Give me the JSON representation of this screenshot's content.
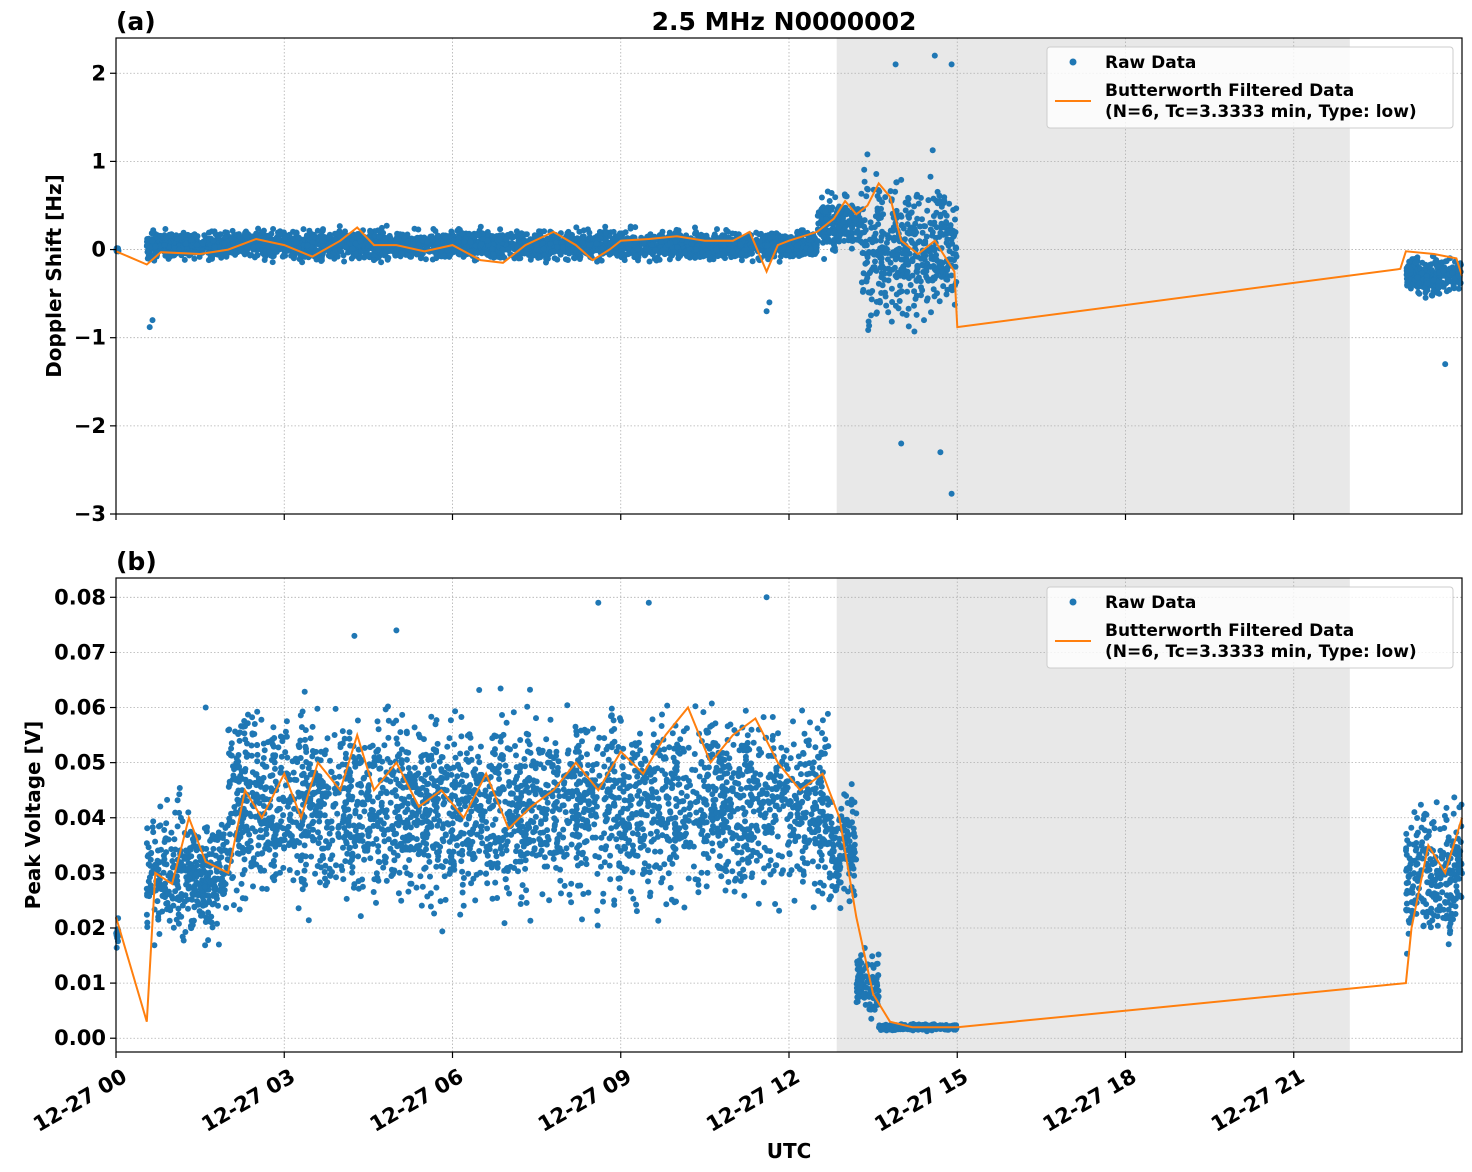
{
  "title": "2.5 MHz N0000002",
  "xlabel": "UTC",
  "x_tick_labels": [
    "12-27 00",
    "12-27 03",
    "12-27 06",
    "12-27 09",
    "12-27 12",
    "12-27 15",
    "12-27 18",
    "12-27 21"
  ],
  "legend": {
    "raw": "Raw Data",
    "filtered_line1": "Butterworth Filtered Data",
    "filtered_line2": "(N=6, Tc=3.3333 min, Type: low)"
  },
  "colors": {
    "raw": "#1f77b4",
    "filtered": "#ff7f0e",
    "shade": "#e8e8e8",
    "grid": "#b0b0b0"
  },
  "chart_data": [
    {
      "panel": "(a)",
      "type": "scatter",
      "ylabel": "Doppler Shift [Hz]",
      "xlim_hours_utc": [
        0,
        24
      ],
      "ylim": [
        -3,
        2.4
      ],
      "y_ticks": [
        -3,
        -2,
        -1,
        0,
        1,
        2
      ],
      "y_tick_labels": [
        "−3",
        "−2",
        "−1",
        "0",
        "1",
        "2"
      ],
      "shaded_region_hours": [
        12.85,
        22
      ],
      "grid": true,
      "legend_position": "top-right",
      "series": [
        {
          "name": "Raw Data",
          "style": "scatter",
          "segments": [
            {
              "hours": [
                0.0,
                0.05
              ],
              "center": 0.0,
              "spread": 0.05
            },
            {
              "hours": [
                0.55,
                12.5
              ],
              "center": 0.05,
              "spread": 0.3
            },
            {
              "hours": [
                12.5,
                13.3
              ],
              "center": 0.3,
              "spread": 0.6
            },
            {
              "hours": [
                13.3,
                15.0
              ],
              "center": 0.0,
              "spread": 1.5
            },
            {
              "hours": [
                23.0,
                24.0
              ],
              "center": -0.3,
              "spread": 0.4
            }
          ],
          "x_hours": [
            0.6,
            0.65,
            11.6,
            11.65,
            13.9,
            14.6,
            14.7,
            14.9,
            14.9,
            14.0,
            23.7
          ],
          "y": [
            -0.88,
            -0.8,
            -0.7,
            -0.6,
            2.1,
            2.2,
            -2.3,
            -2.77,
            2.1,
            -2.2,
            -1.3
          ]
        },
        {
          "name": "Butterworth Filtered Data",
          "style": "line",
          "x_hours": [
            0.0,
            0.55,
            0.8,
            1.5,
            2.0,
            2.5,
            3.0,
            3.5,
            4.0,
            4.3,
            4.6,
            5.0,
            5.5,
            6.0,
            6.5,
            6.9,
            7.3,
            7.8,
            8.2,
            8.5,
            8.8,
            9.0,
            9.5,
            10.0,
            10.5,
            11.0,
            11.3,
            11.6,
            11.8,
            12.0,
            12.5,
            12.8,
            13.0,
            13.2,
            13.4,
            13.6,
            13.8,
            14.0,
            14.3,
            14.6,
            14.95,
            15.0,
            22.9,
            23.0,
            23.5,
            23.9,
            24.0
          ],
          "y": [
            -0.02,
            -0.17,
            -0.03,
            -0.05,
            0.0,
            0.12,
            0.05,
            -0.08,
            0.1,
            0.25,
            0.05,
            0.05,
            -0.02,
            0.05,
            -0.12,
            -0.15,
            0.05,
            0.2,
            0.05,
            -0.12,
            0.0,
            0.1,
            0.12,
            0.15,
            0.1,
            0.1,
            0.2,
            -0.25,
            0.05,
            0.1,
            0.2,
            0.35,
            0.55,
            0.4,
            0.5,
            0.75,
            0.6,
            0.1,
            -0.05,
            0.1,
            -0.25,
            -0.88,
            -0.22,
            -0.02,
            -0.05,
            -0.1,
            -0.3
          ]
        }
      ]
    },
    {
      "panel": "(b)",
      "type": "scatter",
      "ylabel": "Peak Voltage [V]",
      "xlim_hours_utc": [
        0,
        24
      ],
      "ylim": [
        -0.0025,
        0.0835
      ],
      "y_ticks": [
        0.0,
        0.01,
        0.02,
        0.03,
        0.04,
        0.05,
        0.06,
        0.07,
        0.08
      ],
      "y_tick_labels": [
        "0.00",
        "0.01",
        "0.02",
        "0.03",
        "0.04",
        "0.05",
        "0.06",
        "0.07",
        "0.08"
      ],
      "shaded_region_hours": [
        12.85,
        22
      ],
      "grid": true,
      "legend_position": "top-right",
      "series": [
        {
          "name": "Raw Data",
          "style": "scatter",
          "segments": [
            {
              "hours": [
                0.0,
                0.05
              ],
              "center": 0.019,
              "spread": 0.006
            },
            {
              "hours": [
                0.55,
                2.0
              ],
              "center": 0.03,
              "spread": 0.022
            },
            {
              "hours": [
                2.0,
                12.7
              ],
              "center": 0.042,
              "spread": 0.032
            },
            {
              "hours": [
                12.7,
                13.2
              ],
              "center": 0.035,
              "spread": 0.02
            },
            {
              "hours": [
                13.2,
                13.6
              ],
              "center": 0.01,
              "spread": 0.012
            },
            {
              "hours": [
                13.6,
                15.0
              ],
              "center": 0.002,
              "spread": 0.001
            },
            {
              "hours": [
                23.0,
                24.0
              ],
              "center": 0.03,
              "spread": 0.022
            }
          ],
          "x_hours": [
            9.5,
            11.6,
            4.25,
            5.0,
            8.6,
            1.6
          ],
          "y": [
            0.079,
            0.08,
            0.073,
            0.074,
            0.079,
            0.06
          ]
        },
        {
          "name": "Butterworth Filtered Data",
          "style": "line",
          "x_hours": [
            0.0,
            0.55,
            0.7,
            1.0,
            1.3,
            1.6,
            2.0,
            2.3,
            2.6,
            3.0,
            3.3,
            3.6,
            4.0,
            4.3,
            4.6,
            5.0,
            5.4,
            5.8,
            6.2,
            6.6,
            7.0,
            7.4,
            7.8,
            8.2,
            8.6,
            9.0,
            9.4,
            9.8,
            10.2,
            10.6,
            11.0,
            11.4,
            11.8,
            12.2,
            12.6,
            12.9,
            13.2,
            13.5,
            13.8,
            14.2,
            15.0,
            23.0,
            23.1,
            23.4,
            23.7,
            24.0
          ],
          "y": [
            0.022,
            0.003,
            0.03,
            0.028,
            0.04,
            0.032,
            0.03,
            0.045,
            0.04,
            0.048,
            0.04,
            0.05,
            0.045,
            0.055,
            0.045,
            0.05,
            0.042,
            0.045,
            0.04,
            0.048,
            0.038,
            0.042,
            0.045,
            0.05,
            0.045,
            0.052,
            0.048,
            0.055,
            0.06,
            0.05,
            0.055,
            0.058,
            0.05,
            0.045,
            0.048,
            0.04,
            0.022,
            0.008,
            0.003,
            0.002,
            0.002,
            0.01,
            0.02,
            0.035,
            0.03,
            0.04
          ]
        }
      ]
    }
  ]
}
